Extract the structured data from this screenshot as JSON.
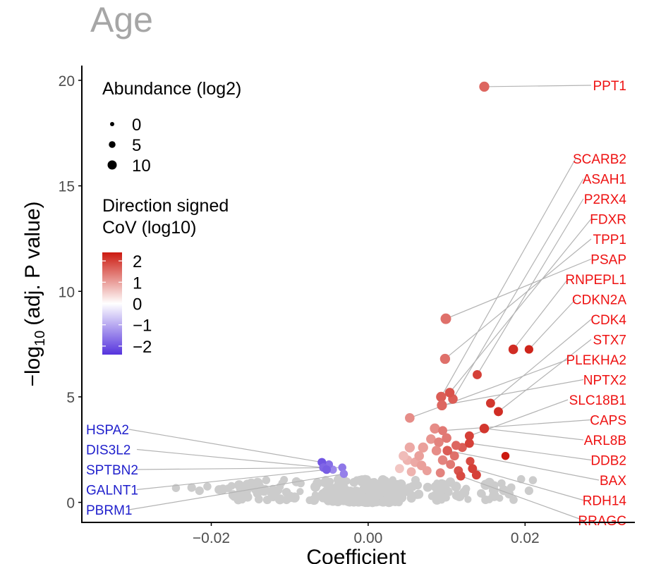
{
  "chart_data": {
    "type": "scatter",
    "title": "Age",
    "xlabel": "Coefficient",
    "ylabel_prefix": "−log",
    "ylabel_sub": "10",
    "ylabel_suffix": "(adj. P value)",
    "xlim": [
      -0.0365,
      0.034
    ],
    "ylim": [
      -0.95,
      20.7
    ],
    "xticks": [
      -0.02,
      0.0,
      0.02
    ],
    "xtick_labels": [
      "−0.02",
      "0.00",
      "0.02"
    ],
    "yticks": [
      0,
      5,
      10,
      15,
      20
    ],
    "ytick_labels": [
      "0",
      "5",
      "10",
      "15",
      "20"
    ],
    "legend": {
      "size_title": "Abundance (log2)",
      "size_levels": [
        0,
        5,
        10
      ],
      "size_labels": [
        "0",
        "5",
        "10"
      ],
      "color_title_line1": "Direction signed",
      "color_title_line2": "CoV (log10)",
      "color_range": [
        -2.4,
        2.4
      ],
      "color_ticks": [
        2,
        1,
        0,
        -1,
        -2
      ],
      "color_labels": [
        "2",
        "1",
        "0",
        "−1",
        "−2"
      ]
    },
    "colors": {
      "neutral": "#cccccc",
      "low": "#5533dd",
      "mid": "#ffffff",
      "high": "#cc1a10",
      "up_label": "#ee1111",
      "down_label": "#1f1fcc",
      "connector": "#b3b3b3",
      "title": "#a6a6a6"
    },
    "labeled_genes": [
      {
        "gene": "PPT1",
        "x": 0.0148,
        "y": 19.7,
        "cov": 1.6,
        "abundance": 9,
        "direction": "up"
      },
      {
        "gene": "SCARB2",
        "x": 0.0093,
        "y": 5.0,
        "cov": 1.7,
        "abundance": 9,
        "direction": "up"
      },
      {
        "gene": "ASAH1",
        "x": 0.0108,
        "y": 4.9,
        "cov": 1.7,
        "abundance": 8,
        "direction": "up"
      },
      {
        "gene": "P2RX4",
        "x": 0.0139,
        "y": 6.05,
        "cov": 2.0,
        "abundance": 7,
        "direction": "up"
      },
      {
        "gene": "FDXR",
        "x": 0.0104,
        "y": 5.2,
        "cov": 1.8,
        "abundance": 8,
        "direction": "up"
      },
      {
        "gene": "TPP1",
        "x": 0.0098,
        "y": 6.8,
        "cov": 1.5,
        "abundance": 9,
        "direction": "up"
      },
      {
        "gene": "PSAP",
        "x": 0.0099,
        "y": 8.7,
        "cov": 1.5,
        "abundance": 10,
        "direction": "up"
      },
      {
        "gene": "RNPEPL1",
        "x": 0.0185,
        "y": 7.25,
        "cov": 2.2,
        "abundance": 8,
        "direction": "up"
      },
      {
        "gene": "CDKN2A",
        "x": 0.0205,
        "y": 7.25,
        "cov": 2.3,
        "abundance": 6,
        "direction": "up"
      },
      {
        "gene": "CDK4",
        "x": 0.0156,
        "y": 4.7,
        "cov": 2.1,
        "abundance": 7,
        "direction": "up"
      },
      {
        "gene": "STX7",
        "x": 0.0166,
        "y": 4.3,
        "cov": 2.2,
        "abundance": 7,
        "direction": "up"
      },
      {
        "gene": "PLEKHA2",
        "x": 0.0053,
        "y": 4.0,
        "cov": 1.2,
        "abundance": 8,
        "direction": "up"
      },
      {
        "gene": "NPTX2",
        "x": 0.0094,
        "y": 4.6,
        "cov": 1.6,
        "abundance": 9,
        "direction": "up"
      },
      {
        "gene": "SLC18B1",
        "x": 0.0129,
        "y": 3.15,
        "cov": 2.0,
        "abundance": 7,
        "direction": "up"
      },
      {
        "gene": "CAPS",
        "x": 0.0095,
        "y": 3.4,
        "cov": 1.4,
        "abundance": 7,
        "direction": "up"
      },
      {
        "gene": "ARL8B",
        "x": 0.0148,
        "y": 3.5,
        "cov": 2.1,
        "abundance": 8,
        "direction": "up"
      },
      {
        "gene": "DDB2",
        "x": 0.0129,
        "y": 2.8,
        "cov": 2.0,
        "abundance": 7,
        "direction": "up"
      },
      {
        "gene": "BAX",
        "x": 0.0101,
        "y": 2.45,
        "cov": 1.7,
        "abundance": 8,
        "direction": "up"
      },
      {
        "gene": "RDH14",
        "x": 0.0133,
        "y": 1.6,
        "cov": 2.0,
        "abundance": 7,
        "direction": "up"
      },
      {
        "gene": "RRAGC",
        "x": 0.0118,
        "y": 1.25,
        "cov": 1.9,
        "abundance": 7,
        "direction": "up"
      },
      {
        "gene": "HSPA2",
        "x": -0.0059,
        "y": 1.9,
        "cov": -2.0,
        "abundance": 6,
        "direction": "down"
      },
      {
        "gene": "DIS3L2",
        "x": -0.0057,
        "y": 1.65,
        "cov": -1.8,
        "abundance": 6,
        "direction": "down"
      },
      {
        "gene": "SPTBN2",
        "x": -0.0033,
        "y": 1.65,
        "cov": -1.6,
        "abundance": 5,
        "direction": "down"
      },
      {
        "gene": "GALNT1",
        "x": -0.0053,
        "y": 1.55,
        "cov": -1.9,
        "abundance": 6,
        "direction": "down"
      },
      {
        "gene": "PBRM1",
        "x": -0.0031,
        "y": 1.35,
        "cov": -1.5,
        "abundance": 5,
        "direction": "down"
      }
    ],
    "other_significant": [
      {
        "x": 0.0085,
        "y": 3.5,
        "cov": 1.2,
        "abundance": 9
      },
      {
        "x": 0.008,
        "y": 3.0,
        "cov": 1.1,
        "abundance": 8
      },
      {
        "x": 0.009,
        "y": 2.85,
        "cov": 1.3,
        "abundance": 8
      },
      {
        "x": 0.007,
        "y": 2.6,
        "cov": 1.0,
        "abundance": 9
      },
      {
        "x": 0.0053,
        "y": 2.6,
        "cov": 0.9,
        "abundance": 9
      },
      {
        "x": 0.005,
        "y": 2.0,
        "cov": 0.8,
        "abundance": 8
      },
      {
        "x": 0.006,
        "y": 1.9,
        "cov": 0.9,
        "abundance": 8
      },
      {
        "x": 0.004,
        "y": 1.6,
        "cov": 0.6,
        "abundance": 7
      },
      {
        "x": 0.0075,
        "y": 1.5,
        "cov": 1.0,
        "abundance": 7
      },
      {
        "x": 0.011,
        "y": 2.2,
        "cov": 1.5,
        "abundance": 7
      },
      {
        "x": 0.0115,
        "y": 1.5,
        "cov": 1.8,
        "abundance": 7
      },
      {
        "x": 0.0138,
        "y": 1.3,
        "cov": 2.0,
        "abundance": 7
      },
      {
        "x": 0.0065,
        "y": 2.2,
        "cov": 1.0,
        "abundance": 8
      },
      {
        "x": 0.0095,
        "y": 2.0,
        "cov": 1.3,
        "abundance": 8
      },
      {
        "x": 0.0105,
        "y": 1.8,
        "cov": 1.4,
        "abundance": 7
      },
      {
        "x": 0.012,
        "y": 2.6,
        "cov": 1.7,
        "abundance": 7
      },
      {
        "x": 0.0087,
        "y": 2.45,
        "cov": 1.2,
        "abundance": 8
      },
      {
        "x": 0.0055,
        "y": 1.45,
        "cov": 0.8,
        "abundance": 7
      },
      {
        "x": 0.0045,
        "y": 2.2,
        "cov": 0.7,
        "abundance": 8
      },
      {
        "x": 0.013,
        "y": 1.95,
        "cov": 1.9,
        "abundance": 6
      },
      {
        "x": 0.0175,
        "y": 2.2,
        "cov": 2.4,
        "abundance": 5
      },
      {
        "x": 0.0092,
        "y": 1.4,
        "cov": 1.3,
        "abundance": 7
      },
      {
        "x": 0.0068,
        "y": 1.75,
        "cov": 1.0,
        "abundance": 8
      },
      {
        "x": 0.01,
        "y": 3.05,
        "cov": 1.4,
        "abundance": 8
      },
      {
        "x": 0.0112,
        "y": 2.7,
        "cov": 1.6,
        "abundance": 7
      },
      {
        "x": -0.0045,
        "y": 1.55,
        "cov": -1.4,
        "abundance": 5
      },
      {
        "x": -0.005,
        "y": 1.8,
        "cov": -1.7,
        "abundance": 5
      }
    ],
    "neutral_summary": "dense cloud of non-significant proteins around x ≈ 0, y ≈ 0–1.3, plus scattered points from x ≈ −0.025 to 0.022"
  }
}
